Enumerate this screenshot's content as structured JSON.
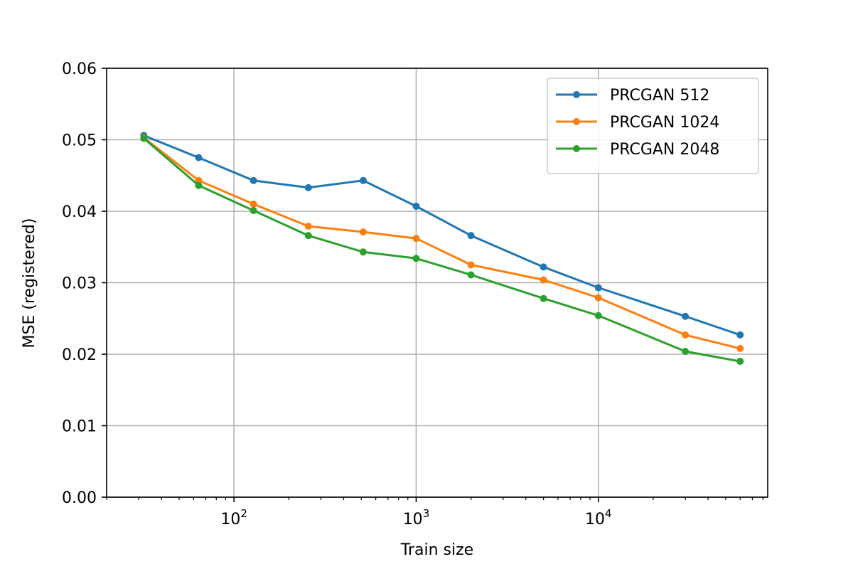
{
  "chart_data": {
    "type": "line",
    "xlabel": "Train size",
    "ylabel": "MSE (registered)",
    "xscale": "log",
    "xlim": [
      20,
      85000
    ],
    "ylim": [
      0.0,
      0.06
    ],
    "x_ticks": [
      {
        "value": 100,
        "base": "10",
        "exp": "2"
      },
      {
        "value": 1000,
        "base": "10",
        "exp": "3"
      },
      {
        "value": 10000,
        "base": "10",
        "exp": "4"
      }
    ],
    "y_ticks": [
      "0.00",
      "0.01",
      "0.02",
      "0.03",
      "0.04",
      "0.05",
      "0.06"
    ],
    "grid": true,
    "legend_position": "top-right",
    "x": [
      32,
      64,
      128,
      256,
      512,
      1000,
      2000,
      5000,
      10000,
      30000,
      60000
    ],
    "series": [
      {
        "name": "PRCGAN 512",
        "color": "#1f77b4",
        "values": [
          0.0506,
          0.0475,
          0.0443,
          0.0433,
          0.0443,
          0.0407,
          0.0366,
          0.0322,
          0.0293,
          0.0253,
          0.0227
        ]
      },
      {
        "name": "PRCGAN 1024",
        "color": "#ff7f0e",
        "values": [
          0.0503,
          0.0443,
          0.041,
          0.0379,
          0.0371,
          0.0362,
          0.0325,
          0.0304,
          0.0279,
          0.0227,
          0.0208
        ]
      },
      {
        "name": "PRCGAN 2048",
        "color": "#2ca02c",
        "values": [
          0.0502,
          0.0436,
          0.0401,
          0.0366,
          0.0343,
          0.0334,
          0.0311,
          0.0278,
          0.0254,
          0.0204,
          0.019
        ]
      }
    ]
  }
}
